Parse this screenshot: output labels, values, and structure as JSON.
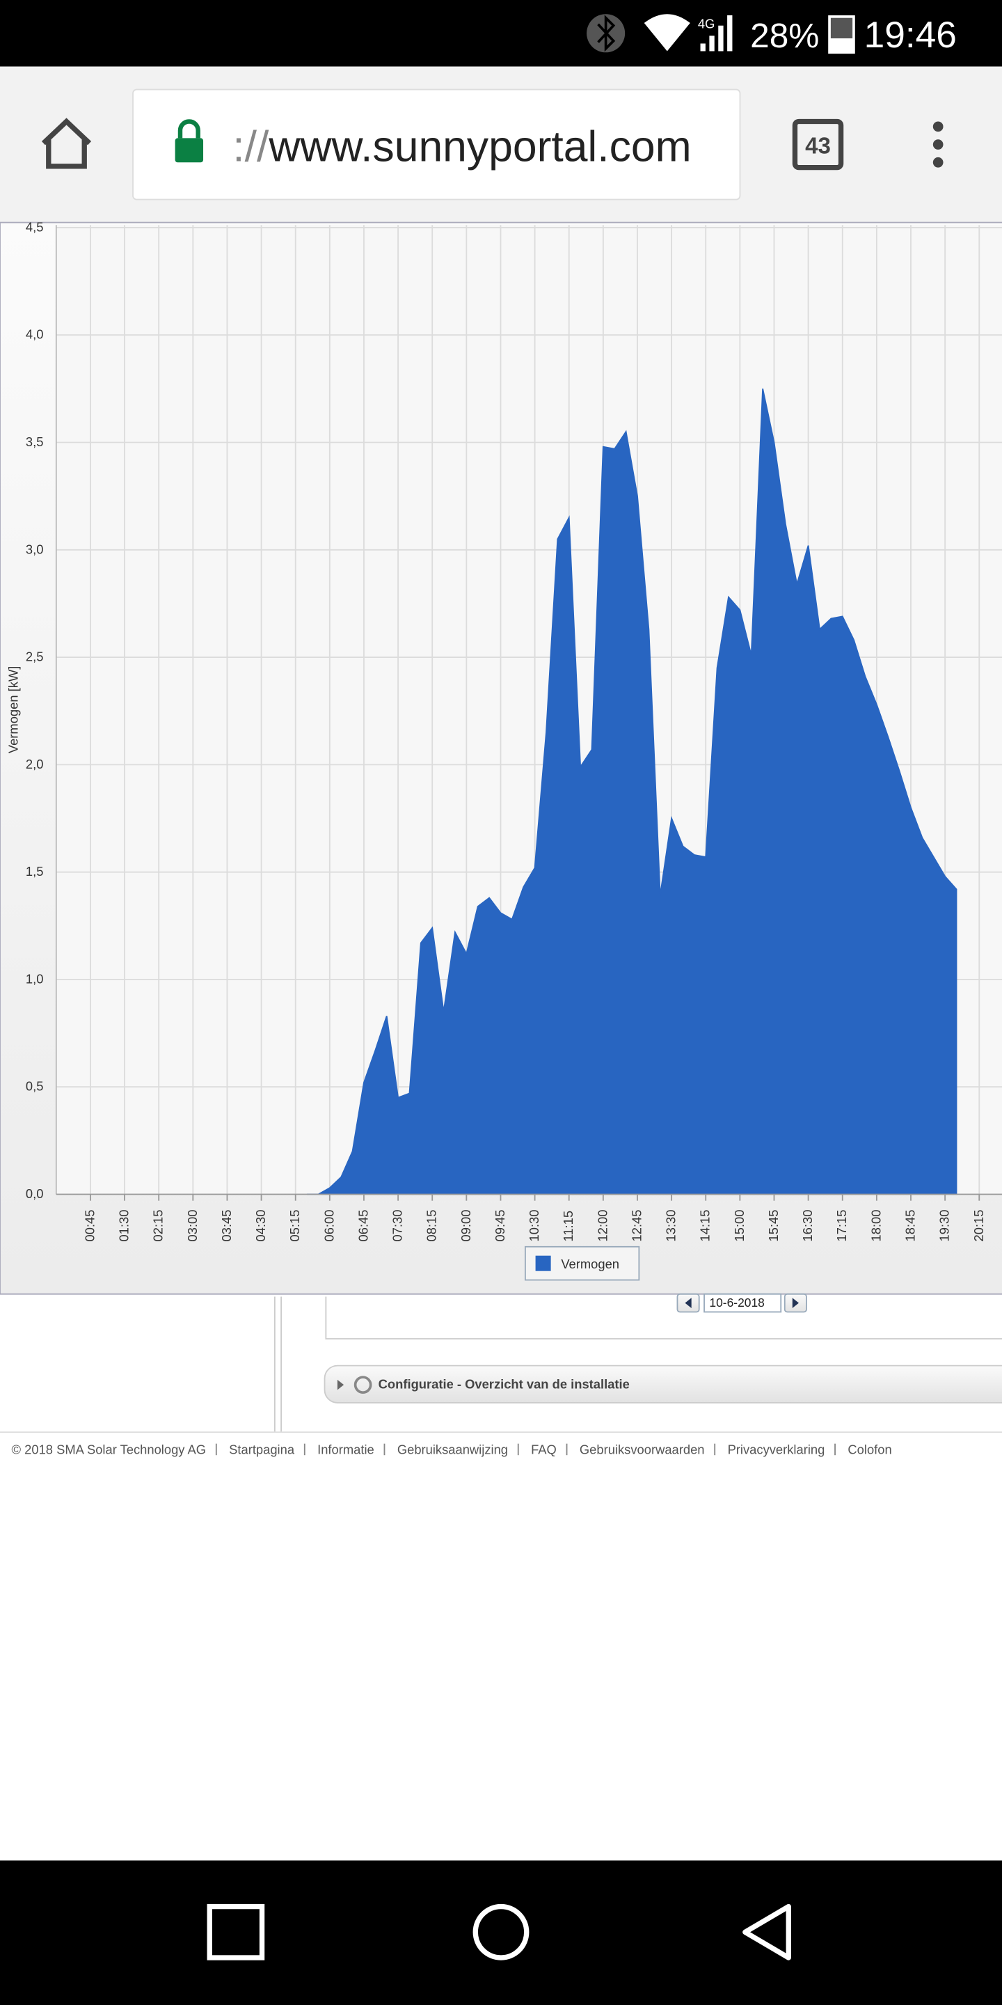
{
  "status_bar": {
    "network": "4G",
    "battery": "28%",
    "time": "19:46"
  },
  "browser": {
    "url_scheme": "://",
    "url_host": "www.sunnyportal.com",
    "tab_count": "43"
  },
  "chart_data": {
    "type": "area",
    "y_label": "Vermogen [kW]",
    "x": [
      "05:30",
      "05:45",
      "06:00",
      "06:15",
      "06:30",
      "06:45",
      "07:00",
      "07:15",
      "07:30",
      "07:45",
      "08:00",
      "08:15",
      "08:30",
      "08:45",
      "09:00",
      "09:15",
      "09:30",
      "09:45",
      "10:00",
      "10:15",
      "10:30",
      "10:45",
      "11:00",
      "11:15",
      "11:30",
      "11:45",
      "12:00",
      "12:15",
      "12:30",
      "12:45",
      "13:00",
      "13:15",
      "13:30",
      "13:45",
      "14:00",
      "14:15",
      "14:30",
      "14:45",
      "15:00",
      "15:15",
      "15:30",
      "15:45",
      "16:00",
      "16:15",
      "16:30",
      "16:45",
      "17:00",
      "17:15",
      "17:30",
      "17:45",
      "18:00",
      "18:15",
      "18:30",
      "18:45",
      "19:00",
      "19:15",
      "19:30",
      "19:45"
    ],
    "series": [
      {
        "name": "Vermogen",
        "color": "#2865c1",
        "values": [
          0,
          0,
          0.03,
          0.08,
          0.2,
          0.52,
          0.67,
          0.83,
          0.45,
          0.47,
          1.17,
          1.24,
          0.85,
          1.22,
          1.12,
          1.34,
          1.38,
          1.31,
          1.28,
          1.43,
          1.52,
          2.15,
          3.05,
          3.15,
          1.99,
          2.07,
          3.48,
          3.47,
          3.55,
          3.25,
          2.63,
          1.39,
          1.75,
          1.62,
          1.58,
          1.57,
          2.45,
          2.78,
          2.72,
          2.51,
          3.75,
          3.5,
          3.12,
          2.84,
          3.02,
          2.63,
          2.68,
          2.69,
          2.58,
          2.41,
          2.28,
          2.13,
          1.97,
          1.8,
          1.66,
          1.57,
          1.48,
          1.42
        ]
      }
    ],
    "xlim": [
      "00:00",
      "20:45"
    ],
    "xticks": [
      "00:45",
      "01:30",
      "02:15",
      "03:00",
      "03:45",
      "04:30",
      "05:15",
      "06:00",
      "06:45",
      "07:30",
      "08:15",
      "09:00",
      "09:45",
      "10:30",
      "11:15",
      "12:00",
      "12:45",
      "13:30",
      "14:15",
      "15:00",
      "15:45",
      "16:30",
      "17:15",
      "18:00",
      "18:45",
      "19:30",
      "20:15"
    ],
    "ylim": [
      0,
      4.5
    ],
    "yticks": [
      {
        "value": 0,
        "label": "0,0"
      },
      {
        "value": 0.5,
        "label": "0,5"
      },
      {
        "value": 1,
        "label": "1,0"
      },
      {
        "value": 1.5,
        "label": "1,5"
      },
      {
        "value": 2,
        "label": "2,0"
      },
      {
        "value": 2.5,
        "label": "2,5"
      },
      {
        "value": 3,
        "label": "3,0"
      },
      {
        "value": 3.5,
        "label": "3,5"
      },
      {
        "value": 4,
        "label": "4,0"
      },
      {
        "value": 4.5,
        "label": "4,5"
      }
    ],
    "grid": true
  },
  "date_picker": "10-6-2018",
  "section": "Configuratie - Overzicht van de installatie",
  "footer": [
    "© 2018 SMA Solar Technology AG",
    "Startpagina",
    "Informatie",
    "Gebruiksaanwijzing",
    "FAQ",
    "Gebruiksvoorwaarden",
    "Privacyverklaring",
    "Colofon"
  ]
}
